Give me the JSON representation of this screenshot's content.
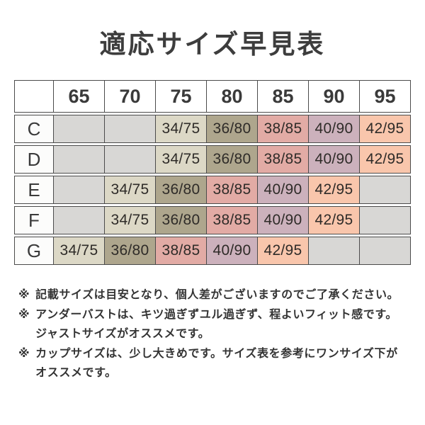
{
  "chart_data": {
    "type": "table",
    "title": "適応サイズ早見表",
    "columns": [
      "65",
      "70",
      "75",
      "80",
      "85",
      "90",
      "95"
    ],
    "corner": "",
    "rows": [
      {
        "label": "C",
        "cells": [
          "",
          "",
          "34/75",
          "36/80",
          "38/85",
          "40/90",
          "42/95"
        ]
      },
      {
        "label": "D",
        "cells": [
          "",
          "",
          "34/75",
          "36/80",
          "38/85",
          "40/90",
          "42/95"
        ]
      },
      {
        "label": "E",
        "cells": [
          "",
          "34/75",
          "36/80",
          "38/85",
          "40/90",
          "42/95",
          ""
        ]
      },
      {
        "label": "F",
        "cells": [
          "",
          "34/75",
          "36/80",
          "38/85",
          "40/90",
          "42/95",
          ""
        ]
      },
      {
        "label": "G",
        "cells": [
          "34/75",
          "36/80",
          "38/85",
          "40/90",
          "42/95",
          "",
          ""
        ]
      }
    ],
    "cell_colors": {
      "empty": "#d8d7d5",
      "34/75": "#dcd8c6",
      "36/80": "#aea68d",
      "38/85": "#e2aba5",
      "40/90": "#ccb1bc",
      "42/95": "#f9c6ac"
    },
    "layout": {
      "header_background": "#ffffff",
      "border_color": "#4b4b4b",
      "title_color": "#3d3d3d"
    }
  },
  "notes": [
    {
      "marker": "※",
      "lines": [
        "記載サイズは目安となり、個人差がございますのでご了承ください。"
      ]
    },
    {
      "marker": "※",
      "lines": [
        "アンダーバストは、キツ過ぎずユル過ぎず、程よいフィット感です。",
        "ジャストサイズがオススメです。"
      ]
    },
    {
      "marker": "※",
      "lines": [
        "カップサイズは、少し大きめです。サイズ表を参考にワンサイズ下が",
        "オススメです。"
      ]
    }
  ]
}
